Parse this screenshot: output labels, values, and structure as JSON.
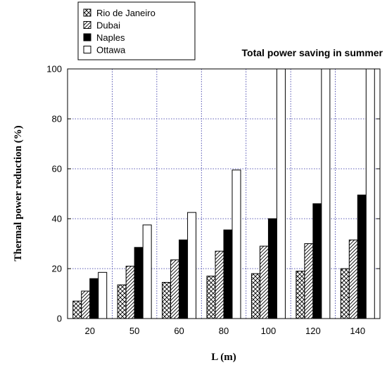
{
  "chart_data": {
    "type": "bar",
    "title": "Total power saving in summer",
    "xlabel": "L (m)",
    "ylabel": "Thermal power reduction (%)",
    "categories": [
      "20",
      "50",
      "60",
      "80",
      "100",
      "120",
      "140"
    ],
    "ylim": [
      0,
      100
    ],
    "yticks": [
      0,
      20,
      40,
      60,
      80,
      100
    ],
    "grid": true,
    "legend_position": "top-left, outside plot",
    "series": [
      {
        "name": "Rio de Janeiro",
        "pattern": "crosshatch",
        "values": [
          7,
          13.5,
          14.5,
          17,
          18,
          19,
          20
        ]
      },
      {
        "name": "Dubai",
        "pattern": "diagonal-hatch",
        "values": [
          11,
          21,
          23.5,
          27,
          29,
          30,
          31.5
        ]
      },
      {
        "name": "Naples",
        "pattern": "solid-black",
        "values": [
          16,
          28.5,
          31.5,
          35.5,
          40,
          46,
          49.5
        ]
      },
      {
        "name": "Ottawa",
        "pattern": "empty",
        "values": [
          18.5,
          37.5,
          42.5,
          59.5,
          100,
          100,
          100
        ]
      }
    ],
    "colors": {
      "grid": "#2a2aa0",
      "bar_stroke": "#000000",
      "solid": "#000000"
    }
  }
}
